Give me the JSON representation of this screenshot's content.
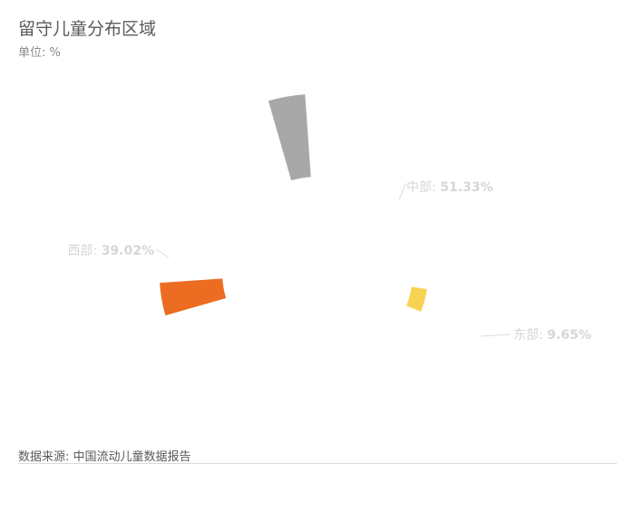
{
  "title": "留守儿童分布区域",
  "subtitle": "单位: %",
  "source": "数据来源: 中国流动儿童数据报告",
  "chart_data": {
    "type": "pie",
    "variant": "rose",
    "title": "留守儿童分布区域",
    "unit": "%",
    "slices": [
      {
        "name": "中部",
        "value": 51.33,
        "display": "51.33%",
        "color": "#a8a8a8"
      },
      {
        "name": "东部",
        "value": 9.65,
        "display": "9.65%",
        "color": "#f6d352"
      },
      {
        "name": "西部",
        "value": 39.02,
        "display": "39.02%",
        "color": "#ec6c22"
      }
    ]
  }
}
